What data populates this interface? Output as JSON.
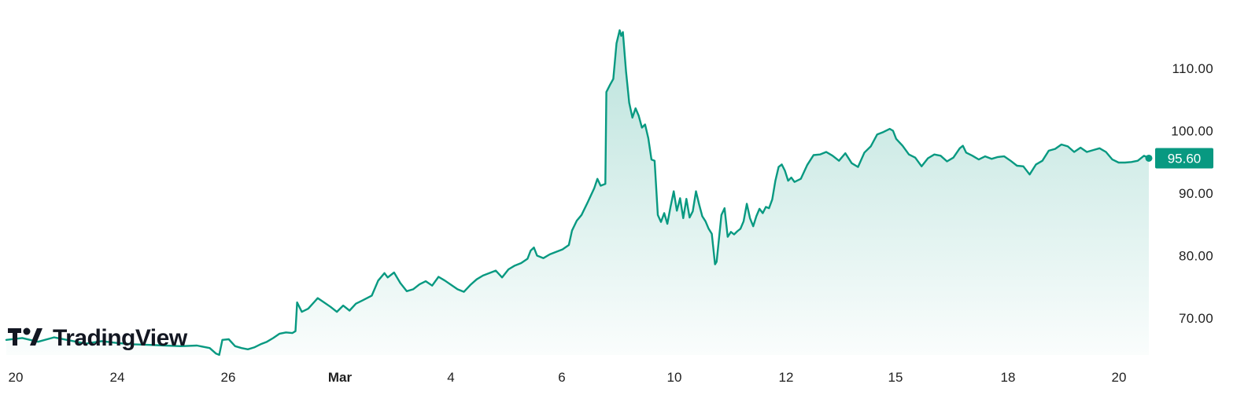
{
  "chart_data": {
    "type": "area",
    "title": "",
    "xlabel": "",
    "ylabel": "",
    "ylim": [
      64,
      118
    ],
    "yticks": [
      {
        "value": 70,
        "label": "70.00"
      },
      {
        "value": 80,
        "label": "80.00"
      },
      {
        "value": 90,
        "label": "90.00"
      },
      {
        "value": 100,
        "label": "100.00"
      },
      {
        "value": 110,
        "label": "110.00"
      }
    ],
    "xticks": [
      {
        "x": "Feb 20",
        "label": "20",
        "bold": false
      },
      {
        "x": "Feb 24",
        "label": "24",
        "bold": false
      },
      {
        "x": "Feb 26",
        "label": "26",
        "bold": false
      },
      {
        "x": "Mar 1",
        "label": "Mar",
        "bold": true
      },
      {
        "x": "Mar 4",
        "label": "4",
        "bold": false
      },
      {
        "x": "Mar 6",
        "label": "6",
        "bold": false
      },
      {
        "x": "Mar 10",
        "label": "10",
        "bold": false
      },
      {
        "x": "Mar 12",
        "label": "12",
        "bold": false
      },
      {
        "x": "Mar 15",
        "label": "15",
        "bold": false
      },
      {
        "x": "Mar 18",
        "label": "18",
        "bold": false
      },
      {
        "x": "Mar 20",
        "label": "20",
        "bold": false
      }
    ],
    "series": [
      {
        "color": "#089981",
        "points": [
          [
            0.0,
            66.5
          ],
          [
            0.5,
            66.8
          ],
          [
            1.0,
            66.2
          ],
          [
            1.5,
            66.9
          ],
          [
            2.0,
            66.4
          ],
          [
            2.5,
            65.9
          ],
          [
            3.0,
            66.3
          ],
          [
            3.5,
            66.0
          ],
          [
            4.0,
            65.8
          ],
          [
            4.5,
            65.7
          ],
          [
            5.0,
            65.6
          ],
          [
            5.5,
            65.5
          ],
          [
            6.0,
            65.6
          ],
          [
            6.4,
            65.2
          ],
          [
            6.6,
            64.3
          ],
          [
            6.7,
            64.1
          ],
          [
            6.8,
            66.5
          ],
          [
            7.0,
            66.6
          ],
          [
            7.2,
            65.5
          ],
          [
            7.4,
            65.2
          ],
          [
            7.6,
            65.0
          ],
          [
            7.8,
            65.3
          ],
          [
            8.0,
            65.8
          ],
          [
            8.2,
            66.2
          ],
          [
            8.4,
            66.8
          ],
          [
            8.6,
            67.5
          ],
          [
            8.8,
            67.7
          ],
          [
            9.0,
            67.6
          ],
          [
            9.1,
            67.9
          ],
          [
            9.15,
            72.5
          ],
          [
            9.3,
            71.0
          ],
          [
            9.5,
            71.5
          ],
          [
            9.8,
            73.2
          ],
          [
            10.0,
            72.5
          ],
          [
            10.2,
            71.8
          ],
          [
            10.4,
            71.0
          ],
          [
            10.6,
            72.0
          ],
          [
            10.8,
            71.2
          ],
          [
            11.0,
            72.3
          ],
          [
            11.2,
            72.8
          ],
          [
            11.5,
            73.6
          ],
          [
            11.7,
            76.0
          ],
          [
            11.9,
            77.2
          ],
          [
            12.0,
            76.5
          ],
          [
            12.2,
            77.3
          ],
          [
            12.4,
            75.6
          ],
          [
            12.6,
            74.3
          ],
          [
            12.8,
            74.6
          ],
          [
            13.0,
            75.4
          ],
          [
            13.2,
            75.9
          ],
          [
            13.4,
            75.2
          ],
          [
            13.6,
            76.6
          ],
          [
            13.8,
            76.0
          ],
          [
            14.0,
            75.3
          ],
          [
            14.2,
            74.6
          ],
          [
            14.4,
            74.2
          ],
          [
            14.6,
            75.3
          ],
          [
            14.8,
            76.2
          ],
          [
            15.0,
            76.8
          ],
          [
            15.2,
            77.2
          ],
          [
            15.4,
            77.6
          ],
          [
            15.6,
            76.5
          ],
          [
            15.8,
            77.8
          ],
          [
            16.0,
            78.4
          ],
          [
            16.2,
            78.8
          ],
          [
            16.4,
            79.5
          ],
          [
            16.5,
            80.8
          ],
          [
            16.6,
            81.3
          ],
          [
            16.7,
            80.0
          ],
          [
            16.9,
            79.6
          ],
          [
            17.1,
            80.2
          ],
          [
            17.3,
            80.6
          ],
          [
            17.5,
            81.0
          ],
          [
            17.7,
            81.7
          ],
          [
            17.8,
            84.0
          ],
          [
            17.95,
            85.6
          ],
          [
            18.1,
            86.5
          ],
          [
            18.3,
            88.6
          ],
          [
            18.5,
            90.8
          ],
          [
            18.6,
            92.3
          ],
          [
            18.7,
            91.2
          ],
          [
            18.85,
            91.5
          ],
          [
            18.88,
            106.2
          ],
          [
            19.0,
            107.4
          ],
          [
            19.1,
            108.3
          ],
          [
            19.2,
            114.0
          ],
          [
            19.3,
            116.1
          ],
          [
            19.35,
            115.2
          ],
          [
            19.4,
            115.8
          ],
          [
            19.5,
            109.5
          ],
          [
            19.6,
            104.5
          ],
          [
            19.7,
            102.1
          ],
          [
            19.8,
            103.6
          ],
          [
            19.9,
            102.4
          ],
          [
            20.0,
            100.5
          ],
          [
            20.1,
            101.0
          ],
          [
            20.2,
            98.8
          ],
          [
            20.3,
            95.4
          ],
          [
            20.4,
            95.2
          ],
          [
            20.5,
            86.5
          ],
          [
            20.6,
            85.4
          ],
          [
            20.7,
            86.8
          ],
          [
            20.8,
            85.1
          ],
          [
            20.9,
            87.8
          ],
          [
            21.0,
            90.3
          ],
          [
            21.1,
            87.2
          ],
          [
            21.2,
            89.2
          ],
          [
            21.3,
            86.0
          ],
          [
            21.4,
            89.1
          ],
          [
            21.5,
            86.1
          ],
          [
            21.6,
            87.1
          ],
          [
            21.7,
            90.3
          ],
          [
            21.8,
            88.2
          ],
          [
            21.9,
            86.3
          ],
          [
            22.0,
            85.5
          ],
          [
            22.1,
            84.3
          ],
          [
            22.2,
            83.5
          ],
          [
            22.3,
            78.6
          ],
          [
            22.35,
            79.0
          ],
          [
            22.5,
            86.5
          ],
          [
            22.6,
            87.6
          ],
          [
            22.7,
            83.0
          ],
          [
            22.8,
            83.8
          ],
          [
            22.9,
            83.4
          ],
          [
            23.0,
            83.9
          ],
          [
            23.1,
            84.3
          ],
          [
            23.2,
            85.5
          ],
          [
            23.3,
            88.3
          ],
          [
            23.4,
            86.0
          ],
          [
            23.5,
            84.7
          ],
          [
            23.6,
            86.3
          ],
          [
            23.7,
            87.5
          ],
          [
            23.8,
            86.8
          ],
          [
            23.9,
            87.8
          ],
          [
            24.0,
            87.6
          ],
          [
            24.1,
            89.0
          ],
          [
            24.2,
            92.0
          ],
          [
            24.3,
            94.2
          ],
          [
            24.4,
            94.6
          ],
          [
            24.5,
            93.6
          ],
          [
            24.6,
            92.0
          ],
          [
            24.7,
            92.5
          ],
          [
            24.8,
            91.8
          ],
          [
            25.0,
            92.3
          ],
          [
            25.2,
            94.5
          ],
          [
            25.4,
            96.1
          ],
          [
            25.6,
            96.2
          ],
          [
            25.8,
            96.6
          ],
          [
            26.0,
            96.0
          ],
          [
            26.2,
            95.2
          ],
          [
            26.4,
            96.4
          ],
          [
            26.6,
            94.8
          ],
          [
            26.8,
            94.2
          ],
          [
            27.0,
            96.5
          ],
          [
            27.2,
            97.5
          ],
          [
            27.4,
            99.4
          ],
          [
            27.6,
            99.8
          ],
          [
            27.8,
            100.3
          ],
          [
            27.9,
            100.0
          ],
          [
            28.0,
            98.7
          ],
          [
            28.2,
            97.6
          ],
          [
            28.4,
            96.2
          ],
          [
            28.6,
            95.7
          ],
          [
            28.8,
            94.3
          ],
          [
            29.0,
            95.6
          ],
          [
            29.2,
            96.2
          ],
          [
            29.4,
            96.0
          ],
          [
            29.6,
            95.1
          ],
          [
            29.8,
            95.7
          ],
          [
            30.0,
            97.2
          ],
          [
            30.1,
            97.6
          ],
          [
            30.2,
            96.5
          ],
          [
            30.4,
            96.0
          ],
          [
            30.6,
            95.4
          ],
          [
            30.8,
            95.9
          ],
          [
            31.0,
            95.5
          ],
          [
            31.2,
            95.8
          ],
          [
            31.4,
            95.9
          ],
          [
            31.6,
            95.2
          ],
          [
            31.8,
            94.4
          ],
          [
            32.0,
            94.3
          ],
          [
            32.2,
            93.0
          ],
          [
            32.4,
            94.6
          ],
          [
            32.6,
            95.2
          ],
          [
            32.8,
            96.8
          ],
          [
            33.0,
            97.1
          ],
          [
            33.2,
            97.8
          ],
          [
            33.4,
            97.5
          ],
          [
            33.6,
            96.6
          ],
          [
            33.8,
            97.3
          ],
          [
            34.0,
            96.6
          ],
          [
            34.2,
            96.9
          ],
          [
            34.4,
            97.2
          ],
          [
            34.6,
            96.6
          ],
          [
            34.8,
            95.4
          ],
          [
            35.0,
            94.9
          ],
          [
            35.2,
            94.9
          ],
          [
            35.4,
            95.0
          ],
          [
            35.6,
            95.2
          ],
          [
            35.8,
            96.0
          ],
          [
            35.95,
            95.6
          ]
        ]
      }
    ],
    "last_price": {
      "value": 95.6,
      "label": "95.60"
    },
    "grid": false,
    "legend": "none"
  },
  "logo": {
    "text": "TradingView"
  }
}
